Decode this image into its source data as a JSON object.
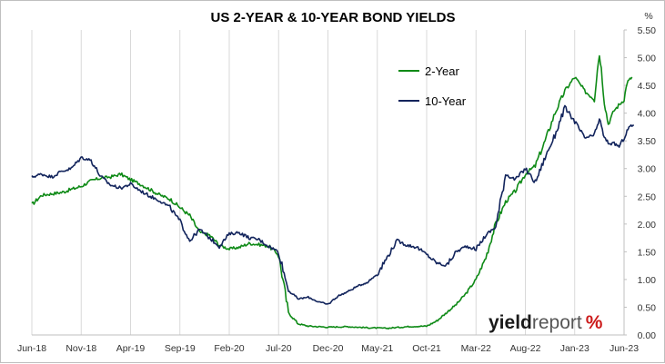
{
  "chart_data": {
    "type": "line",
    "title": "US 2-YEAR & 10-YEAR BOND YIELDS",
    "y_unit": "%",
    "ylim": [
      0,
      5.5
    ],
    "y_ticks": [
      "0.00",
      "0.50",
      "1.00",
      "1.50",
      "2.00",
      "2.50",
      "3.00",
      "3.50",
      "4.00",
      "4.50",
      "5.00",
      "5.50"
    ],
    "x_ticks": [
      "Jun-18",
      "Nov-18",
      "Apr-19",
      "Sep-19",
      "Feb-20",
      "Jul-20",
      "Dec-20",
      "May-21",
      "Oct-21",
      "Mar-22",
      "Aug-22",
      "Jan-23",
      "Jun-23"
    ],
    "grid": "vertical",
    "legend_position": "top-right",
    "series": [
      {
        "name": "2-Year",
        "color": "#0e8a16",
        "points": [
          [
            0,
            2.35
          ],
          [
            1,
            2.52
          ],
          [
            3,
            2.57
          ],
          [
            5,
            2.68
          ],
          [
            6,
            2.78
          ],
          [
            7,
            2.83
          ],
          [
            8,
            2.85
          ],
          [
            9,
            2.9
          ],
          [
            10,
            2.8
          ],
          [
            11,
            2.72
          ],
          [
            12,
            2.62
          ],
          [
            13,
            2.52
          ],
          [
            14,
            2.45
          ],
          [
            15,
            2.3
          ],
          [
            16,
            2.15
          ],
          [
            17,
            1.85
          ],
          [
            18,
            1.8
          ],
          [
            19,
            1.62
          ],
          [
            20,
            1.55
          ],
          [
            21,
            1.58
          ],
          [
            22,
            1.65
          ],
          [
            23,
            1.63
          ],
          [
            24,
            1.6
          ],
          [
            25,
            1.45
          ],
          [
            26,
            0.4
          ],
          [
            27,
            0.2
          ],
          [
            28,
            0.16
          ],
          [
            30,
            0.14
          ],
          [
            32,
            0.15
          ],
          [
            34,
            0.13
          ],
          [
            36,
            0.12
          ],
          [
            38,
            0.15
          ],
          [
            40,
            0.16
          ],
          [
            41,
            0.25
          ],
          [
            42,
            0.4
          ],
          [
            43,
            0.55
          ],
          [
            44,
            0.75
          ],
          [
            45,
            1.0
          ],
          [
            46,
            1.4
          ],
          [
            47,
            2.0
          ],
          [
            48,
            2.4
          ],
          [
            49,
            2.6
          ],
          [
            50,
            2.9
          ],
          [
            51,
            3.05
          ],
          [
            52,
            3.5
          ],
          [
            53,
            4.0
          ],
          [
            54,
            4.4
          ],
          [
            55,
            4.65
          ],
          [
            56,
            4.4
          ],
          [
            57,
            4.25
          ],
          [
            57.3,
            4.8
          ],
          [
            57.5,
            5.05
          ],
          [
            57.7,
            4.8
          ],
          [
            58,
            4.2
          ],
          [
            58.4,
            3.8
          ],
          [
            59,
            4.05
          ],
          [
            60,
            4.25
          ],
          [
            60.3,
            4.55
          ],
          [
            60.8,
            4.65
          ]
        ]
      },
      {
        "name": "10-Year",
        "color": "#12245c",
        "points": [
          [
            0,
            2.85
          ],
          [
            1,
            2.9
          ],
          [
            2,
            2.85
          ],
          [
            3,
            2.95
          ],
          [
            4,
            3.0
          ],
          [
            5,
            3.2
          ],
          [
            6,
            3.15
          ],
          [
            7,
            2.85
          ],
          [
            8,
            2.7
          ],
          [
            9,
            2.65
          ],
          [
            10,
            2.72
          ],
          [
            11,
            2.6
          ],
          [
            12,
            2.5
          ],
          [
            13,
            2.42
          ],
          [
            14,
            2.3
          ],
          [
            15,
            2.05
          ],
          [
            16,
            1.7
          ],
          [
            17,
            1.9
          ],
          [
            18,
            1.75
          ],
          [
            19,
            1.6
          ],
          [
            20,
            1.82
          ],
          [
            21,
            1.85
          ],
          [
            22,
            1.75
          ],
          [
            23,
            1.72
          ],
          [
            24,
            1.6
          ],
          [
            25,
            1.5
          ],
          [
            26,
            0.8
          ],
          [
            27,
            0.65
          ],
          [
            28,
            0.68
          ],
          [
            29,
            0.6
          ],
          [
            30,
            0.55
          ],
          [
            31,
            0.7
          ],
          [
            32,
            0.78
          ],
          [
            33,
            0.88
          ],
          [
            34,
            0.95
          ],
          [
            35,
            1.1
          ],
          [
            36,
            1.4
          ],
          [
            37,
            1.7
          ],
          [
            38,
            1.62
          ],
          [
            39,
            1.58
          ],
          [
            40,
            1.45
          ],
          [
            41,
            1.3
          ],
          [
            42,
            1.25
          ],
          [
            43,
            1.5
          ],
          [
            44,
            1.6
          ],
          [
            45,
            1.55
          ],
          [
            46,
            1.8
          ],
          [
            47,
            1.95
          ],
          [
            48,
            2.9
          ],
          [
            49,
            2.8
          ],
          [
            50,
            3.0
          ],
          [
            51,
            2.75
          ],
          [
            52,
            3.2
          ],
          [
            53,
            3.6
          ],
          [
            54,
            4.1
          ],
          [
            55,
            3.85
          ],
          [
            56,
            3.55
          ],
          [
            57,
            3.6
          ],
          [
            57.5,
            3.9
          ],
          [
            58,
            3.55
          ],
          [
            58.5,
            3.45
          ],
          [
            59,
            3.45
          ],
          [
            59.5,
            3.4
          ],
          [
            60,
            3.55
          ],
          [
            60.5,
            3.75
          ],
          [
            61,
            3.78
          ]
        ]
      }
    ]
  },
  "logo": {
    "text_bold": "yield",
    "text_light": "report",
    "symbol": "%",
    "color_dark": "#1a1a1a",
    "color_light": "#555555",
    "color_accent": "#cc1a1a"
  }
}
